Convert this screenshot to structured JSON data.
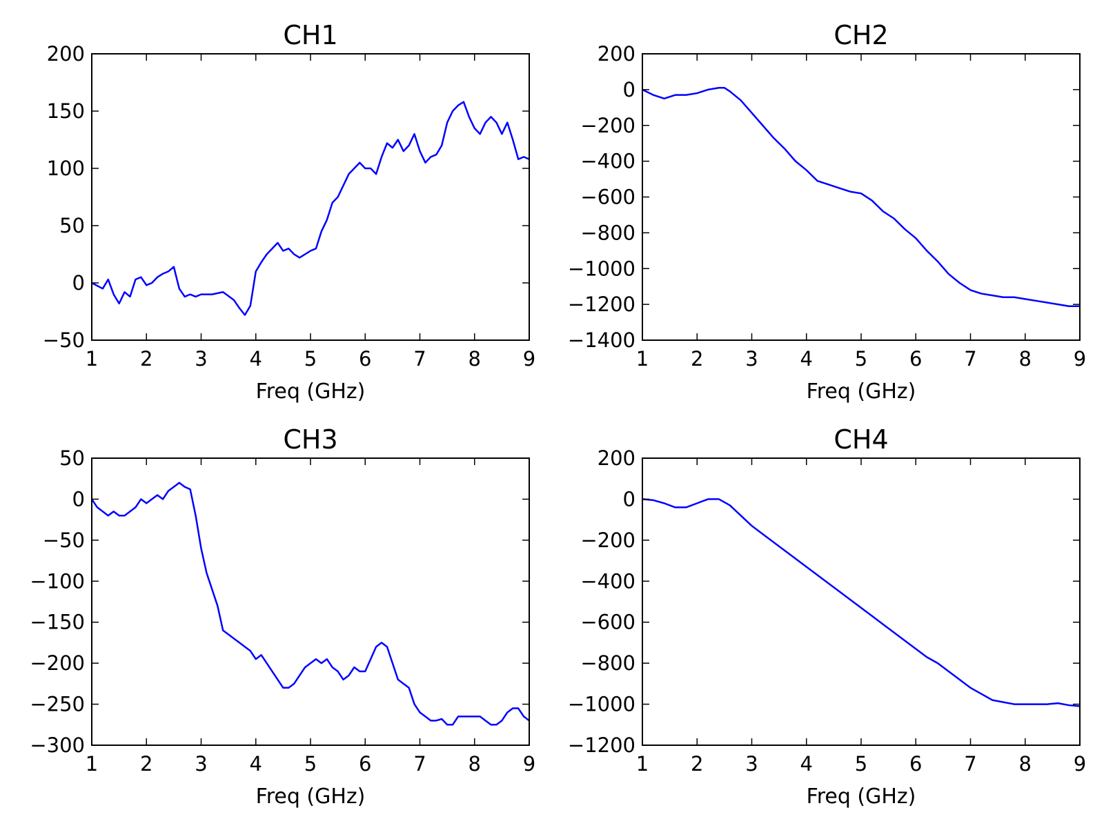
{
  "line_color": "#0000ff",
  "chart_data": [
    {
      "type": "line",
      "title": "CH1",
      "xlabel": "Freq (GHz)",
      "ylabel": "",
      "xlim": [
        1,
        9
      ],
      "ylim": [
        -50,
        200
      ],
      "xticks": [
        1,
        2,
        3,
        4,
        5,
        6,
        7,
        8,
        9
      ],
      "yticks": [
        -50,
        0,
        50,
        100,
        150,
        200
      ],
      "grid": false,
      "series": [
        {
          "x": [
            1.0,
            1.2,
            1.3,
            1.4,
            1.5,
            1.6,
            1.7,
            1.8,
            1.9,
            2.0,
            2.1,
            2.2,
            2.3,
            2.4,
            2.5,
            2.6,
            2.7,
            2.8,
            2.9,
            3.0,
            3.2,
            3.4,
            3.6,
            3.7,
            3.8,
            3.9,
            4.0,
            4.1,
            4.2,
            4.3,
            4.4,
            4.5,
            4.6,
            4.7,
            4.8,
            4.9,
            5.0,
            5.1,
            5.2,
            5.3,
            5.4,
            5.5,
            5.6,
            5.7,
            5.8,
            5.9,
            6.0,
            6.1,
            6.2,
            6.3,
            6.4,
            6.5,
            6.6,
            6.7,
            6.8,
            6.9,
            7.0,
            7.1,
            7.2,
            7.3,
            7.4,
            7.5,
            7.6,
            7.7,
            7.8,
            7.9,
            8.0,
            8.1,
            8.2,
            8.3,
            8.4,
            8.5,
            8.6,
            8.7,
            8.8,
            8.9,
            9.0
          ],
          "y": [
            0,
            -5,
            3,
            -10,
            -18,
            -8,
            -12,
            3,
            5,
            -2,
            0,
            5,
            8,
            10,
            14,
            -5,
            -12,
            -10,
            -12,
            -10,
            -10,
            -8,
            -15,
            -22,
            -28,
            -20,
            10,
            18,
            25,
            30,
            35,
            28,
            30,
            25,
            22,
            25,
            28,
            30,
            45,
            55,
            70,
            75,
            85,
            95,
            100,
            105,
            100,
            100,
            95,
            110,
            122,
            118,
            125,
            115,
            120,
            130,
            115,
            105,
            110,
            112,
            120,
            140,
            150,
            155,
            158,
            145,
            135,
            130,
            140,
            145,
            140,
            130,
            140,
            125,
            108,
            110,
            108
          ]
        }
      ]
    },
    {
      "type": "line",
      "title": "CH2",
      "xlabel": "Freq (GHz)",
      "ylabel": "",
      "xlim": [
        1,
        9
      ],
      "ylim": [
        -1400,
        200
      ],
      "xticks": [
        1,
        2,
        3,
        4,
        5,
        6,
        7,
        8,
        9
      ],
      "yticks": [
        -1400,
        -1200,
        -1000,
        -800,
        -600,
        -400,
        -200,
        0,
        200
      ],
      "grid": false,
      "series": [
        {
          "x": [
            1.0,
            1.2,
            1.4,
            1.6,
            1.8,
            2.0,
            2.2,
            2.4,
            2.5,
            2.6,
            2.8,
            3.0,
            3.2,
            3.4,
            3.6,
            3.8,
            4.0,
            4.2,
            4.4,
            4.6,
            4.8,
            5.0,
            5.2,
            5.4,
            5.6,
            5.8,
            6.0,
            6.2,
            6.4,
            6.6,
            6.8,
            7.0,
            7.2,
            7.4,
            7.6,
            7.8,
            8.0,
            8.2,
            8.4,
            8.6,
            8.8,
            9.0
          ],
          "y": [
            0,
            -30,
            -50,
            -30,
            -30,
            -20,
            0,
            10,
            10,
            -10,
            -60,
            -130,
            -200,
            -270,
            -330,
            -400,
            -450,
            -510,
            -530,
            -550,
            -570,
            -580,
            -620,
            -680,
            -720,
            -780,
            -830,
            -900,
            -960,
            -1030,
            -1080,
            -1120,
            -1140,
            -1150,
            -1160,
            -1160,
            -1170,
            -1180,
            -1190,
            -1200,
            -1210,
            -1210
          ]
        }
      ]
    },
    {
      "type": "line",
      "title": "CH3",
      "xlabel": "Freq (GHz)",
      "ylabel": "",
      "xlim": [
        1,
        9
      ],
      "ylim": [
        -300,
        50
      ],
      "xticks": [
        1,
        2,
        3,
        4,
        5,
        6,
        7,
        8,
        9
      ],
      "yticks": [
        -300,
        -250,
        -200,
        -150,
        -100,
        -50,
        0,
        50
      ],
      "grid": false,
      "series": [
        {
          "x": [
            1.0,
            1.1,
            1.2,
            1.3,
            1.4,
            1.5,
            1.6,
            1.7,
            1.8,
            1.9,
            2.0,
            2.1,
            2.2,
            2.3,
            2.4,
            2.5,
            2.6,
            2.7,
            2.8,
            2.9,
            3.0,
            3.1,
            3.2,
            3.3,
            3.4,
            3.5,
            3.6,
            3.7,
            3.8,
            3.9,
            4.0,
            4.1,
            4.2,
            4.3,
            4.4,
            4.5,
            4.6,
            4.7,
            4.8,
            4.9,
            5.0,
            5.1,
            5.2,
            5.3,
            5.4,
            5.5,
            5.6,
            5.7,
            5.8,
            5.9,
            6.0,
            6.1,
            6.2,
            6.3,
            6.4,
            6.5,
            6.6,
            6.7,
            6.8,
            6.9,
            7.0,
            7.1,
            7.2,
            7.3,
            7.4,
            7.5,
            7.6,
            7.7,
            7.8,
            7.9,
            8.0,
            8.1,
            8.2,
            8.3,
            8.4,
            8.5,
            8.6,
            8.7,
            8.8,
            8.9,
            9.0
          ],
          "y": [
            0,
            -10,
            -15,
            -20,
            -15,
            -20,
            -20,
            -15,
            -10,
            0,
            -5,
            0,
            5,
            0,
            10,
            15,
            20,
            15,
            12,
            -20,
            -60,
            -90,
            -110,
            -130,
            -160,
            -165,
            -170,
            -175,
            -180,
            -185,
            -195,
            -190,
            -200,
            -210,
            -220,
            -230,
            -230,
            -225,
            -215,
            -205,
            -200,
            -195,
            -200,
            -195,
            -205,
            -210,
            -220,
            -215,
            -205,
            -210,
            -210,
            -195,
            -180,
            -175,
            -180,
            -200,
            -220,
            -225,
            -230,
            -250,
            -260,
            -265,
            -270,
            -270,
            -268,
            -275,
            -275,
            -265,
            -265,
            -265,
            -265,
            -265,
            -270,
            -275,
            -275,
            -270,
            -260,
            -255,
            -255,
            -265,
            -270
          ]
        }
      ]
    },
    {
      "type": "line",
      "title": "CH4",
      "xlabel": "Freq (GHz)",
      "ylabel": "",
      "xlim": [
        1,
        9
      ],
      "ylim": [
        -1200,
        200
      ],
      "xticks": [
        1,
        2,
        3,
        4,
        5,
        6,
        7,
        8,
        9
      ],
      "yticks": [
        -1200,
        -1000,
        -800,
        -600,
        -400,
        -200,
        0,
        200
      ],
      "grid": false,
      "series": [
        {
          "x": [
            1.0,
            1.2,
            1.4,
            1.6,
            1.8,
            2.0,
            2.2,
            2.4,
            2.6,
            2.8,
            3.0,
            3.2,
            3.4,
            3.6,
            3.8,
            4.0,
            4.2,
            4.4,
            4.6,
            4.8,
            5.0,
            5.2,
            5.4,
            5.6,
            5.8,
            6.0,
            6.2,
            6.4,
            6.6,
            6.8,
            7.0,
            7.2,
            7.4,
            7.6,
            7.8,
            8.0,
            8.2,
            8.4,
            8.6,
            8.8,
            9.0
          ],
          "y": [
            0,
            -5,
            -20,
            -40,
            -40,
            -20,
            0,
            0,
            -30,
            -80,
            -130,
            -170,
            -210,
            -250,
            -290,
            -330,
            -370,
            -410,
            -450,
            -490,
            -530,
            -570,
            -610,
            -650,
            -690,
            -730,
            -770,
            -800,
            -840,
            -880,
            -920,
            -950,
            -980,
            -990,
            -1000,
            -1000,
            -1000,
            -1000,
            -995,
            -1005,
            -1010
          ]
        }
      ]
    }
  ]
}
